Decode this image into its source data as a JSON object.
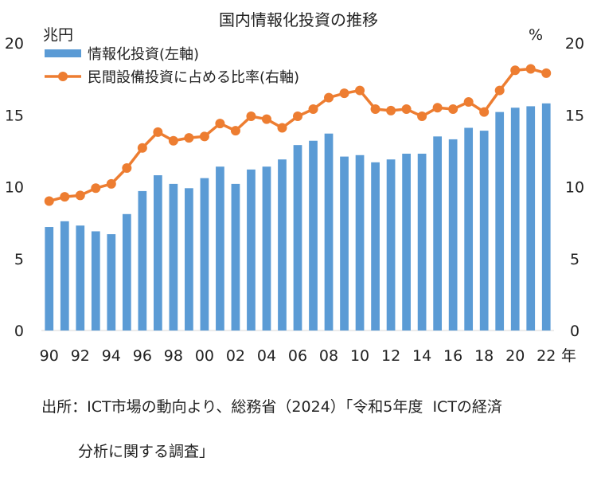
{
  "chart_data": {
    "type": "bar",
    "title": "国内情報化投資の推移",
    "y_left_unit": "兆円",
    "y_right_unit": "%",
    "x_unit": "年",
    "ylim": [
      0,
      20
    ],
    "y_ticks": [
      0,
      5,
      10,
      15,
      20
    ],
    "x": [
      1990,
      1991,
      1992,
      1993,
      1994,
      1995,
      1996,
      1997,
      1998,
      1999,
      2000,
      2001,
      2002,
      2003,
      2004,
      2005,
      2006,
      2007,
      2008,
      2009,
      2010,
      2011,
      2012,
      2013,
      2014,
      2015,
      2016,
      2017,
      2018,
      2019,
      2020,
      2021,
      2022
    ],
    "x_tick_labels": [
      "90",
      "92",
      "94",
      "96",
      "98",
      "00",
      "02",
      "04",
      "06",
      "08",
      "10",
      "12",
      "14",
      "16",
      "18",
      "20",
      "22"
    ],
    "series": [
      {
        "name": "情報化投資(左軸)",
        "type": "bar",
        "axis": "left",
        "color": "#5b9bd5",
        "values": [
          7.2,
          7.6,
          7.3,
          6.9,
          6.7,
          8.1,
          9.7,
          10.8,
          10.2,
          9.9,
          10.6,
          11.4,
          10.2,
          11.2,
          11.4,
          11.9,
          12.9,
          13.2,
          13.7,
          12.1,
          12.2,
          11.7,
          11.9,
          12.3,
          12.3,
          13.5,
          13.3,
          14.1,
          13.9,
          15.2,
          15.5,
          15.6,
          15.8
        ]
      },
      {
        "name": "民間設備投資に占める比率(右軸)",
        "type": "line",
        "axis": "right",
        "color": "#ed7d31",
        "values": [
          9.0,
          9.3,
          9.4,
          9.9,
          10.2,
          11.3,
          12.7,
          13.8,
          13.2,
          13.4,
          13.5,
          14.4,
          13.9,
          14.9,
          14.7,
          14.1,
          14.9,
          15.4,
          16.2,
          16.5,
          16.7,
          15.4,
          15.3,
          15.4,
          14.9,
          15.5,
          15.4,
          15.9,
          15.2,
          16.7,
          18.1,
          18.2,
          17.9
        ]
      }
    ],
    "legend_position": "top-left",
    "grid": false
  },
  "source": {
    "line1": "出所：ICT市場の動向より、総務省（2024）「令和5年度  ICTの経済",
    "line2": "分析に関する調査」"
  }
}
